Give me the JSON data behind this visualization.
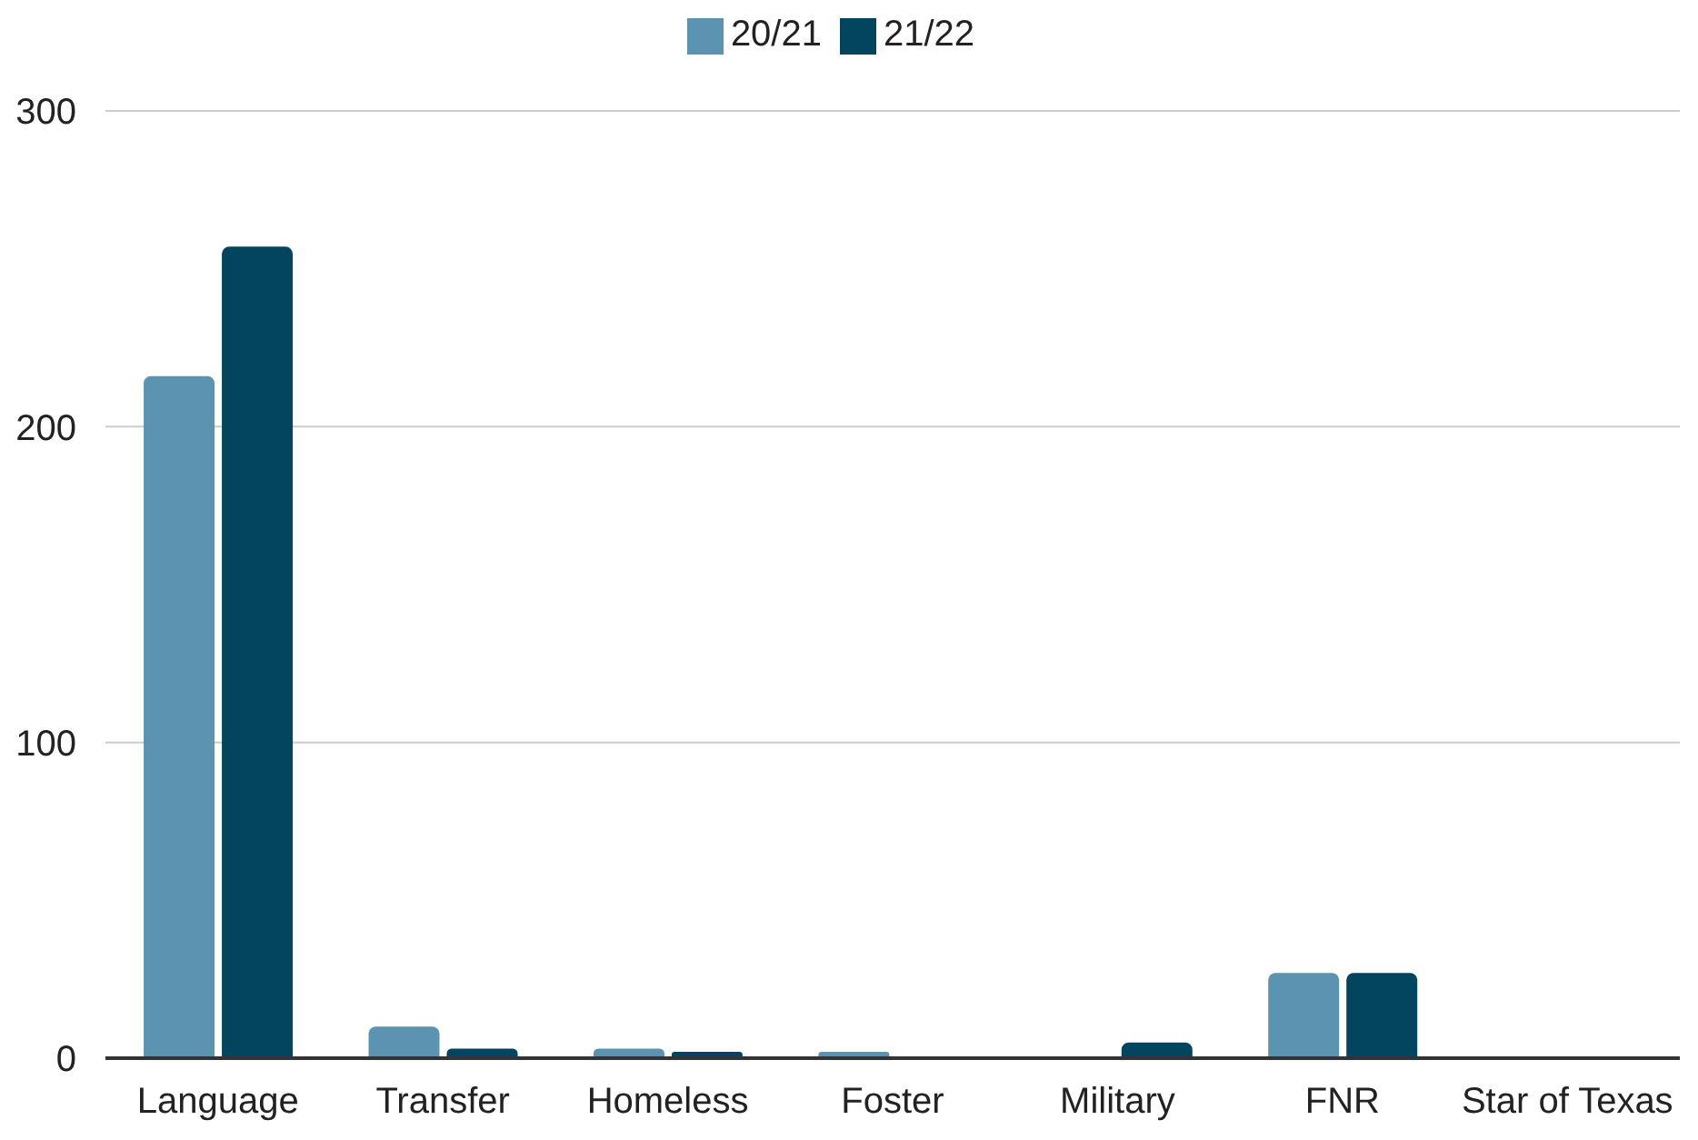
{
  "chart_data": {
    "type": "bar",
    "categories": [
      "Language",
      "Transfer",
      "Homeless",
      "Foster",
      "Military",
      "FNR",
      "Star of Texas"
    ],
    "series": [
      {
        "name": "20/21",
        "color": "#5b93b0",
        "values": [
          216,
          10,
          3,
          2,
          0,
          27,
          0
        ]
      },
      {
        "name": "21/22",
        "color": "#03445f",
        "values": [
          257,
          3,
          2,
          0,
          5,
          27,
          0
        ]
      }
    ],
    "ylim": [
      0,
      300
    ],
    "yticks": [
      0,
      100,
      200,
      300
    ],
    "grid": "y",
    "legend": "top"
  }
}
